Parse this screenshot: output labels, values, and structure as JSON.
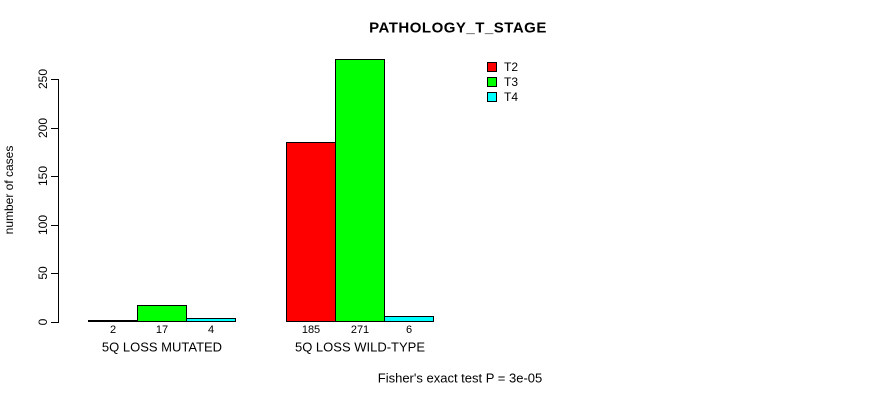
{
  "chart_data": {
    "type": "bar",
    "title": "PATHOLOGY_T_STAGE",
    "ylabel": "number of cases",
    "xlabel": "",
    "caption": "Fisher's exact test P = 3e-05",
    "categories": [
      "5Q LOSS MUTATED",
      "5Q LOSS WILD-TYPE"
    ],
    "series": [
      {
        "name": "T2",
        "color": "#ff0000",
        "values": [
          2,
          185
        ]
      },
      {
        "name": "T3",
        "color": "#00ff00",
        "values": [
          17,
          271
        ]
      },
      {
        "name": "T4",
        "color": "#00ffff",
        "values": [
          4,
          6
        ]
      }
    ],
    "bar_value_labels": [
      [
        "2",
        "17",
        "4"
      ],
      [
        "185",
        "271",
        "6"
      ]
    ],
    "yticks": [
      0,
      50,
      100,
      150,
      200,
      250
    ],
    "ylim": [
      0,
      250
    ],
    "grid": false,
    "legend_position": "top-right",
    "bar_border_color": "#000000",
    "background_color": "#ffffff"
  }
}
